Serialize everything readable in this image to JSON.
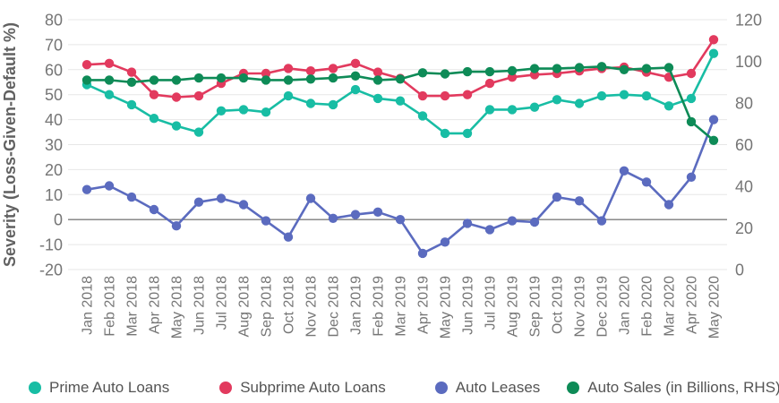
{
  "chart_data": {
    "type": "line",
    "ylabel_left": "Severity (Loss-Given-Default %)",
    "left_axis": {
      "min": -20,
      "max": 80,
      "ticks": [
        80,
        70,
        60,
        50,
        40,
        30,
        20,
        10,
        0,
        -10,
        -20
      ]
    },
    "right_axis": {
      "min": 0,
      "max": 120,
      "ticks": [
        120,
        100,
        80,
        60,
        40,
        20,
        0
      ]
    },
    "grid": true,
    "legend_position": "bottom",
    "categories": [
      "Jan 2018",
      "Feb 2018",
      "Mar 2018",
      "Apr 2018",
      "May 2018",
      "Jun 2018",
      "Jul 2018",
      "Aug 2018",
      "Sep 2018",
      "Oct 2018",
      "Nov 2018",
      "Dec 2018",
      "Jan 2019",
      "Feb 2019",
      "Mar 2019",
      "Apr 2019",
      "May 2019",
      "Jun 2019",
      "Jul 2019",
      "Aug 2019",
      "Sep 2019",
      "Oct 2019",
      "Nov 2019",
      "Dec 2019",
      "Jan 2020",
      "Feb 2020",
      "Mar 2020",
      "Apr 2020",
      "May 2020"
    ],
    "series": [
      {
        "name": "Auto Leases",
        "axis": "left",
        "color": "#5b6bbf",
        "values": [
          12,
          13.5,
          9,
          4,
          -2.5,
          7,
          8.5,
          6,
          -0.5,
          -7,
          8.5,
          0.5,
          2,
          3,
          0,
          -13.5,
          -9,
          -1.5,
          -4,
          -0.5,
          -1,
          9,
          7.5,
          -0.5,
          19.5,
          15,
          6,
          17,
          40
        ]
      },
      {
        "name": "Prime Auto Loans",
        "axis": "left",
        "color": "#18bda4",
        "values": [
          54,
          50,
          46,
          40.5,
          37.5,
          35,
          43.5,
          44,
          43,
          49.5,
          46.5,
          46,
          52,
          48.5,
          47.5,
          41.5,
          34.5,
          34.5,
          44,
          44,
          45,
          48,
          46.5,
          49.5,
          50,
          49.5,
          45.5,
          48.5,
          66.5
        ]
      },
      {
        "name": "Subprime Auto Loans",
        "axis": "left",
        "color": "#e23a5e",
        "values": [
          62,
          62.5,
          59,
          50,
          49,
          49.5,
          54.5,
          58.5,
          58.5,
          60.5,
          59.5,
          60.5,
          62.5,
          59,
          56.5,
          49.5,
          49.5,
          50,
          54.5,
          57,
          58,
          58.5,
          59.5,
          60.5,
          61,
          59,
          57,
          58.5,
          72
        ]
      },
      {
        "name": "Auto Sales (in Billions, RHS)",
        "axis": "right",
        "color": "#0e8b57",
        "values": [
          91,
          91,
          90,
          91,
          91,
          92,
          92,
          92,
          91,
          91,
          91.5,
          92,
          93,
          91,
          91.5,
          94.5,
          94,
          95,
          95,
          95.5,
          96.5,
          96.5,
          97,
          97.5,
          96,
          96.5,
          97,
          71,
          62
        ]
      }
    ],
    "legend_order": [
      "Prime Auto Loans",
      "Subprime Auto Loans",
      "Auto Leases",
      "Auto Sales (in Billions, RHS)"
    ]
  }
}
